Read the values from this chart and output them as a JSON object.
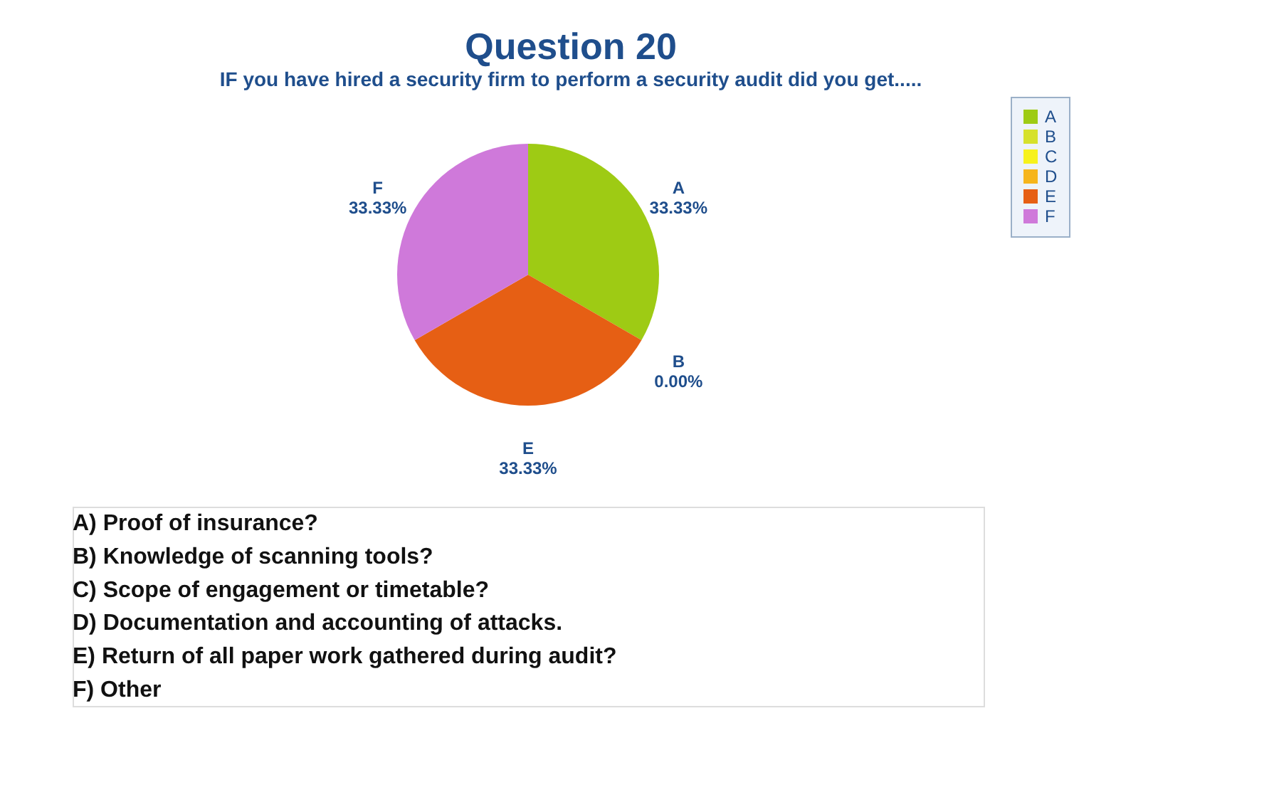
{
  "chart_data": {
    "type": "pie",
    "title": "Question 20",
    "subtitle": "IF you have hired a security firm to perform a security audit  did you get.....",
    "categories": [
      "A",
      "B",
      "C",
      "D",
      "E",
      "F"
    ],
    "values": [
      33.33,
      0,
      0,
      0,
      33.33,
      33.33
    ],
    "colors": [
      "#9ecb14",
      "#d6e12c",
      "#f7f21c",
      "#f6b51c",
      "#e65f14",
      "#cf79da"
    ],
    "value_labels": [
      "33.33%",
      "0.00%",
      null,
      null,
      "33.33%",
      "33.33%"
    ],
    "legend": "right",
    "annotations": [
      "A) Proof of insurance?",
      "B) Knowledge of scanning tools?",
      "C) Scope of engagement or timetable?",
      "D) Documentation and accounting of attacks.",
      "E) Return of all paper work gathered during audit?",
      "F) Other"
    ]
  }
}
